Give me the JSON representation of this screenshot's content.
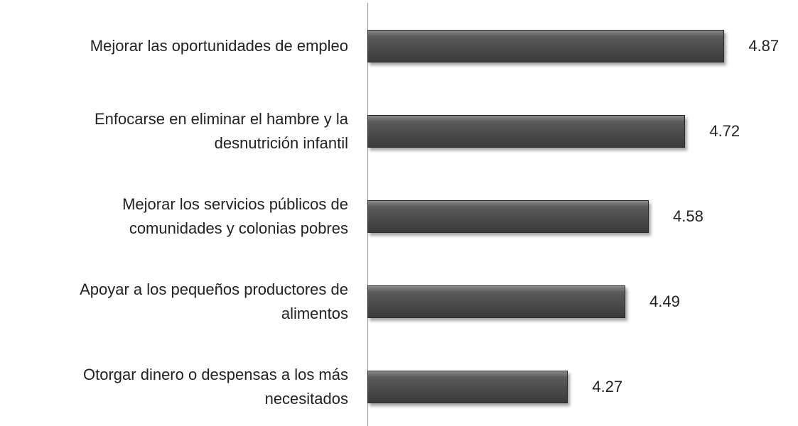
{
  "chart_data": {
    "type": "barh",
    "categories": [
      "Mejorar las oportunidades de empleo",
      "Enfocarse en eliminar el hambre y la\ndesnutrición infantil",
      "Mejorar los servicios públicos de\ncomunidades y colonias pobres",
      "Apoyar a los pequeños productores de\nalimentos",
      "Otorgar dinero o despensas a los más\nnecesitados"
    ],
    "values": [
      4.87,
      4.72,
      4.58,
      4.49,
      4.27
    ],
    "color": "#4a4a4a",
    "xlim": [
      3.5,
      5.0
    ]
  }
}
